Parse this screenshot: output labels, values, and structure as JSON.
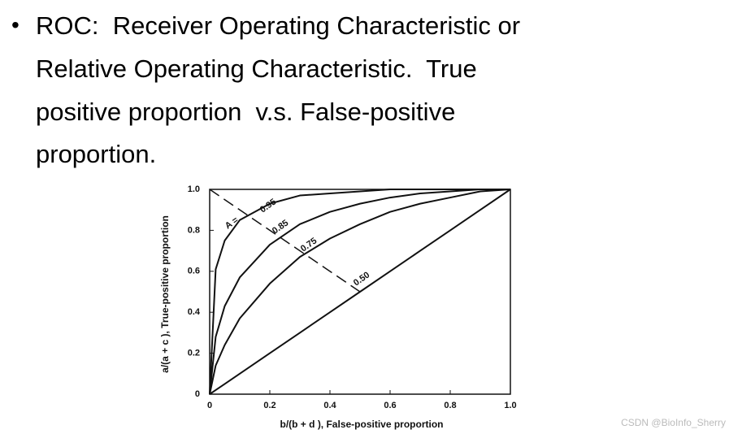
{
  "slide": {
    "bullet_lines": [
      "ROC:  Receiver Operating Characteristic or",
      "Relative Operating Characteristic.  True",
      "positive proportion  v.s. False-positive",
      "proportion."
    ]
  },
  "chart_data": {
    "type": "line",
    "x_label": "b/(b + d ), False-positive proportion",
    "y_label": "a/(a + c ), True-positive proportion",
    "annotation": "A =",
    "x": [
      0,
      0.02,
      0.05,
      0.1,
      0.2,
      0.3,
      0.4,
      0.5,
      0.6,
      0.7,
      0.8,
      0.9,
      1.0
    ],
    "series": [
      {
        "name": "0.95",
        "color": "#111111",
        "values": [
          0,
          0.61,
          0.75,
          0.85,
          0.93,
          0.97,
          0.98,
          0.99,
          1.0,
          1.0,
          1.0,
          1.0,
          1.0
        ]
      },
      {
        "name": "0.85",
        "color": "#111111",
        "values": [
          0,
          0.28,
          0.43,
          0.57,
          0.73,
          0.83,
          0.89,
          0.93,
          0.96,
          0.98,
          0.99,
          1.0,
          1.0
        ]
      },
      {
        "name": "0.75",
        "color": "#111111",
        "values": [
          0,
          0.14,
          0.24,
          0.37,
          0.54,
          0.67,
          0.76,
          0.83,
          0.89,
          0.93,
          0.96,
          0.99,
          1.0
        ]
      },
      {
        "name": "0.50",
        "color": "#111111",
        "values": [
          0,
          0.02,
          0.05,
          0.1,
          0.2,
          0.3,
          0.4,
          0.5,
          0.6,
          0.7,
          0.8,
          0.9,
          1.0
        ]
      }
    ],
    "xlim": [
      0,
      1
    ],
    "ylim": [
      0,
      1
    ],
    "xticks": [
      0,
      0.2,
      0.4,
      0.6,
      0.8,
      {
        "value": 1,
        "label": "1.0"
      }
    ],
    "yticks": [
      0,
      0.2,
      0.4,
      0.6,
      0.8,
      {
        "value": 1,
        "label": "1.0"
      }
    ],
    "grid": false
  },
  "watermark": "CSDN @BioInfo_Sherry"
}
